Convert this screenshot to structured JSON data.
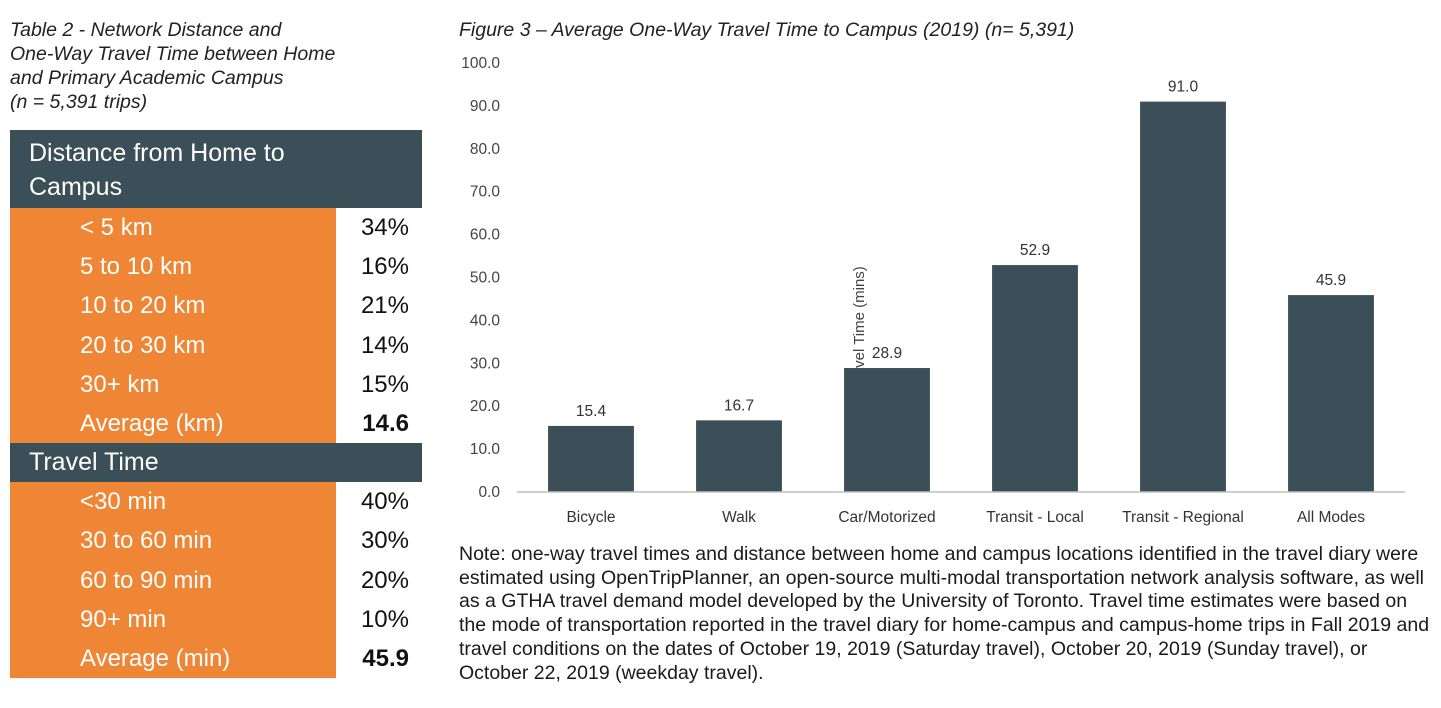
{
  "table": {
    "caption_lines": [
      "Table 2 - Network Distance and",
      "One-Way Travel Time between Home",
      "and Primary Academic Campus",
      "(n = 5,391 trips)"
    ],
    "distance": {
      "header_lines": [
        "Distance from Home to",
        "Campus"
      ],
      "rows": [
        {
          "label": "< 5 km",
          "value": "34%"
        },
        {
          "label": "5 to 10 km",
          "value": "16%"
        },
        {
          "label": "10 to 20 km",
          "value": "21%"
        },
        {
          "label": "20 to 30 km",
          "value": "14%"
        },
        {
          "label": "30+ km",
          "value": "15%"
        },
        {
          "label": "Average (km)",
          "value": "14.6"
        }
      ]
    },
    "travel_time": {
      "header": "Travel Time",
      "rows": [
        {
          "label": "<30 min",
          "value": "40%"
        },
        {
          "label": "30 to 60 min",
          "value": "30%"
        },
        {
          "label": "60 to 90 min",
          "value": "20%"
        },
        {
          "label": "90+ min",
          "value": "10%"
        },
        {
          "label": "Average (min)",
          "value": "45.9"
        }
      ]
    },
    "colors": {
      "header_bg": "#3a4f58",
      "label_bg": "#ef8636"
    }
  },
  "chart_data": {
    "type": "bar",
    "title": "Figure 3 – Average One-Way Travel Time to Campus (2019) (n= 5,391)",
    "xlabel": "",
    "ylabel": "Travel Time (mins)",
    "categories": [
      "Bicycle",
      "Walk",
      "Car/Motorized",
      "Transit - Local",
      "Transit - Regional",
      "All Modes"
    ],
    "values": [
      15.4,
      16.7,
      28.9,
      52.9,
      91.0,
      45.9
    ],
    "data_labels": [
      "15.4",
      "16.7",
      "28.9",
      "52.9",
      "91.0",
      "45.9"
    ],
    "ylim": [
      0,
      100
    ],
    "yticks": [
      "0.0",
      "10.0",
      "20.0",
      "30.0",
      "40.0",
      "50.0",
      "60.0",
      "70.0",
      "80.0",
      "90.0",
      "100.0"
    ],
    "grid": false,
    "bar_color": "#3a4f58"
  },
  "note": "Note: one-way travel times and distance between home and campus locations identified in the travel diary were estimated using OpenTripPlanner, an open-source multi-modal transportation network analysis software, as well as a GTHA travel demand model developed by the University of Toronto. Travel time estimates were based on the mode of transportation reported in the travel diary for home-campus and campus-home trips in Fall 2019 and travel conditions on the dates of October 19, 2019 (Saturday travel), October 20, 2019 (Sunday travel), or October 22, 2019 (weekday travel)."
}
